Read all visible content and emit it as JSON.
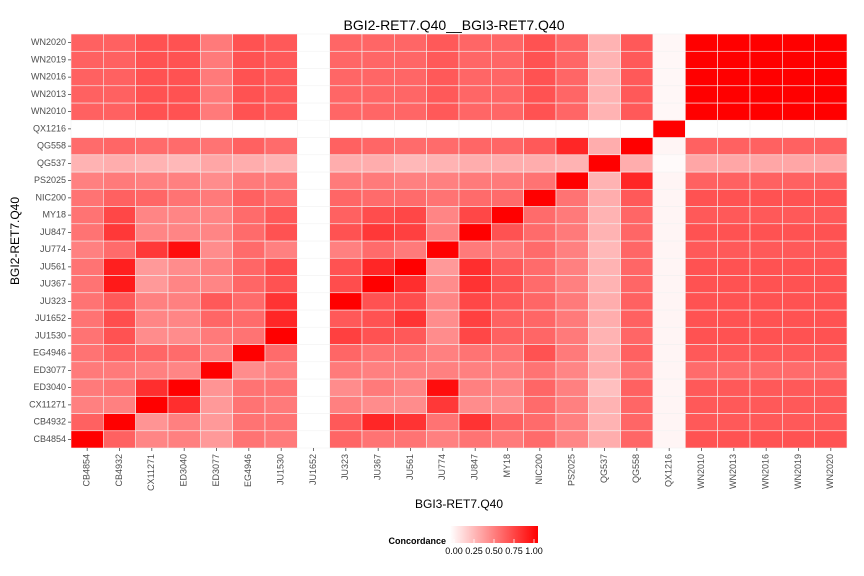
{
  "chart_data": {
    "type": "heatmap",
    "title": "BGI2-RET7.Q40__BGI3-RET7.Q40",
    "xlabel": "BGI3-RET7.Q40",
    "ylabel": "BGI2-RET7.Q40",
    "legend": {
      "title": "Concordance",
      "placement": "bottom",
      "ticks": [
        "0.00",
        "0.25",
        "0.50",
        "0.75",
        "1.00"
      ],
      "low_color": "#ffffff",
      "high_color": "#ff0000"
    },
    "grid": true,
    "colors": {
      "panel_bg": "#ebebeb",
      "tile_border": "#f2f2f2",
      "axis_text": "#4d4d4d"
    },
    "x_categories": [
      "CB4854",
      "CB4932",
      "CX11271",
      "ED3040",
      "ED3077",
      "EG4946",
      "JU1530",
      "JU1652",
      "JU323",
      "JU367",
      "JU561",
      "JU774",
      "JU847",
      "MY18",
      "NIC200",
      "PS2025",
      "QG537",
      "QG558",
      "QX1216",
      "WN2010",
      "WN2013",
      "WN2016",
      "WN2019",
      "WN2020"
    ],
    "y_categories": [
      "CB4854",
      "CB4932",
      "CX11271",
      "ED3040",
      "ED3077",
      "EG4946",
      "JU1530",
      "JU1652",
      "JU323",
      "JU367",
      "JU561",
      "JU774",
      "JU847",
      "MY18",
      "NIC200",
      "PS2025",
      "QG537",
      "QG558",
      "QX1216",
      "WN2010",
      "WN2013",
      "WN2016",
      "WN2019",
      "WN2020"
    ],
    "values": [
      [
        1.0,
        0.62,
        0.48,
        0.5,
        0.4,
        0.55,
        0.52,
        0.0,
        0.6,
        0.55,
        0.55,
        0.5,
        0.55,
        0.52,
        0.58,
        0.48,
        0.32,
        0.6,
        0.04,
        0.68,
        0.68,
        0.68,
        0.68,
        0.68
      ],
      [
        0.62,
        1.0,
        0.42,
        0.5,
        0.4,
        0.55,
        0.55,
        0.0,
        0.65,
        0.85,
        0.8,
        0.55,
        0.8,
        0.62,
        0.58,
        0.5,
        0.3,
        0.6,
        0.04,
        0.65,
        0.65,
        0.65,
        0.65,
        0.65
      ],
      [
        0.5,
        0.5,
        1.0,
        0.82,
        0.4,
        0.55,
        0.52,
        0.0,
        0.5,
        0.45,
        0.45,
        0.78,
        0.45,
        0.45,
        0.58,
        0.5,
        0.3,
        0.6,
        0.04,
        0.65,
        0.65,
        0.65,
        0.65,
        0.65
      ],
      [
        0.52,
        0.55,
        0.82,
        1.0,
        0.42,
        0.55,
        0.55,
        0.0,
        0.45,
        0.52,
        0.48,
        0.95,
        0.5,
        0.48,
        0.6,
        0.5,
        0.25,
        0.62,
        0.04,
        0.65,
        0.65,
        0.65,
        0.65,
        0.65
      ],
      [
        0.52,
        0.52,
        0.5,
        0.48,
        1.0,
        0.45,
        0.5,
        0.0,
        0.52,
        0.5,
        0.5,
        0.5,
        0.5,
        0.5,
        0.55,
        0.48,
        0.32,
        0.55,
        0.04,
        0.58,
        0.58,
        0.58,
        0.58,
        0.58
      ],
      [
        0.55,
        0.62,
        0.6,
        0.58,
        0.5,
        1.0,
        0.58,
        0.0,
        0.6,
        0.55,
        0.55,
        0.5,
        0.55,
        0.55,
        0.68,
        0.52,
        0.32,
        0.62,
        0.04,
        0.65,
        0.65,
        0.65,
        0.65,
        0.65
      ],
      [
        0.55,
        0.68,
        0.45,
        0.45,
        0.52,
        0.55,
        1.0,
        0.0,
        0.75,
        0.68,
        0.65,
        0.45,
        0.72,
        0.62,
        0.6,
        0.52,
        0.3,
        0.6,
        0.04,
        0.68,
        0.68,
        0.68,
        0.68,
        0.68
      ],
      [
        0.55,
        0.7,
        0.48,
        0.48,
        0.6,
        0.58,
        0.85,
        0.0,
        0.65,
        0.68,
        0.8,
        0.45,
        0.75,
        0.62,
        0.6,
        0.52,
        0.32,
        0.62,
        0.04,
        0.68,
        0.68,
        0.68,
        0.68,
        0.68
      ],
      [
        0.55,
        0.65,
        0.5,
        0.5,
        0.65,
        0.58,
        0.8,
        0.0,
        1.0,
        0.68,
        0.7,
        0.48,
        0.72,
        0.65,
        0.6,
        0.52,
        0.32,
        0.62,
        0.04,
        0.68,
        0.68,
        0.68,
        0.68,
        0.68
      ],
      [
        0.55,
        0.9,
        0.4,
        0.48,
        0.48,
        0.6,
        0.68,
        0.0,
        0.7,
        1.0,
        0.82,
        0.45,
        0.8,
        0.68,
        0.58,
        0.5,
        0.3,
        0.6,
        0.04,
        0.68,
        0.68,
        0.68,
        0.68,
        0.68
      ],
      [
        0.55,
        0.88,
        0.4,
        0.45,
        0.5,
        0.6,
        0.7,
        0.0,
        0.68,
        0.85,
        1.0,
        0.4,
        0.82,
        0.65,
        0.58,
        0.5,
        0.3,
        0.6,
        0.04,
        0.68,
        0.68,
        0.68,
        0.68,
        0.68
      ],
      [
        0.5,
        0.58,
        0.78,
        0.95,
        0.45,
        0.58,
        0.5,
        0.0,
        0.5,
        0.58,
        0.52,
        1.0,
        0.52,
        0.52,
        0.58,
        0.5,
        0.28,
        0.6,
        0.04,
        0.65,
        0.65,
        0.65,
        0.65,
        0.65
      ],
      [
        0.55,
        0.78,
        0.48,
        0.48,
        0.48,
        0.58,
        0.68,
        0.0,
        0.68,
        0.78,
        0.75,
        0.5,
        1.0,
        0.68,
        0.58,
        0.52,
        0.3,
        0.6,
        0.04,
        0.68,
        0.68,
        0.68,
        0.68,
        0.68
      ],
      [
        0.55,
        0.72,
        0.48,
        0.48,
        0.48,
        0.58,
        0.65,
        0.0,
        0.62,
        0.7,
        0.72,
        0.48,
        0.72,
        1.0,
        0.58,
        0.52,
        0.3,
        0.6,
        0.04,
        0.65,
        0.65,
        0.65,
        0.65,
        0.65
      ],
      [
        0.55,
        0.62,
        0.6,
        0.55,
        0.52,
        0.62,
        0.58,
        0.0,
        0.6,
        0.58,
        0.58,
        0.55,
        0.58,
        0.58,
        1.0,
        0.55,
        0.32,
        0.65,
        0.04,
        0.68,
        0.68,
        0.68,
        0.68,
        0.68
      ],
      [
        0.5,
        0.52,
        0.5,
        0.5,
        0.45,
        0.52,
        0.52,
        0.0,
        0.52,
        0.52,
        0.5,
        0.5,
        0.52,
        0.52,
        0.55,
        1.0,
        0.3,
        0.85,
        0.04,
        0.62,
        0.62,
        0.62,
        0.62,
        0.62
      ],
      [
        0.3,
        0.32,
        0.3,
        0.28,
        0.35,
        0.32,
        0.3,
        0.0,
        0.32,
        0.32,
        0.28,
        0.3,
        0.32,
        0.32,
        0.32,
        0.3,
        1.0,
        0.32,
        0.02,
        0.35,
        0.35,
        0.35,
        0.35,
        0.35
      ],
      [
        0.58,
        0.6,
        0.58,
        0.58,
        0.55,
        0.62,
        0.58,
        0.0,
        0.62,
        0.6,
        0.58,
        0.58,
        0.6,
        0.6,
        0.65,
        0.85,
        0.32,
        1.0,
        0.04,
        0.62,
        0.62,
        0.62,
        0.62,
        0.62
      ],
      [
        0.0,
        0.0,
        0.0,
        0.0,
        0.0,
        0.0,
        0.0,
        0.0,
        0.0,
        0.0,
        0.0,
        0.0,
        0.0,
        0.0,
        0.0,
        0.0,
        0.0,
        0.0,
        1.0,
        0.0,
        0.0,
        0.0,
        0.0,
        0.0
      ],
      [
        0.62,
        0.62,
        0.68,
        0.68,
        0.52,
        0.68,
        0.65,
        0.0,
        0.6,
        0.6,
        0.6,
        0.65,
        0.6,
        0.6,
        0.68,
        0.6,
        0.3,
        0.65,
        0.03,
        1.0,
        1.0,
        1.0,
        1.0,
        1.0
      ],
      [
        0.62,
        0.62,
        0.68,
        0.68,
        0.52,
        0.68,
        0.65,
        0.0,
        0.6,
        0.6,
        0.6,
        0.65,
        0.6,
        0.6,
        0.68,
        0.6,
        0.3,
        0.65,
        0.03,
        1.0,
        1.0,
        1.0,
        1.0,
        1.0
      ],
      [
        0.62,
        0.62,
        0.68,
        0.68,
        0.52,
        0.68,
        0.65,
        0.0,
        0.6,
        0.6,
        0.6,
        0.65,
        0.6,
        0.6,
        0.68,
        0.6,
        0.3,
        0.65,
        0.03,
        1.0,
        1.0,
        1.0,
        1.0,
        1.0
      ],
      [
        0.62,
        0.62,
        0.68,
        0.68,
        0.52,
        0.68,
        0.65,
        0.0,
        0.6,
        0.6,
        0.6,
        0.65,
        0.6,
        0.6,
        0.68,
        0.6,
        0.3,
        0.65,
        0.03,
        1.0,
        1.0,
        1.0,
        1.0,
        1.0
      ],
      [
        0.62,
        0.62,
        0.68,
        0.68,
        0.52,
        0.68,
        0.65,
        0.0,
        0.6,
        0.6,
        0.6,
        0.65,
        0.6,
        0.6,
        0.68,
        0.6,
        0.3,
        0.65,
        0.03,
        1.0,
        1.0,
        1.0,
        1.0,
        1.0
      ]
    ]
  }
}
